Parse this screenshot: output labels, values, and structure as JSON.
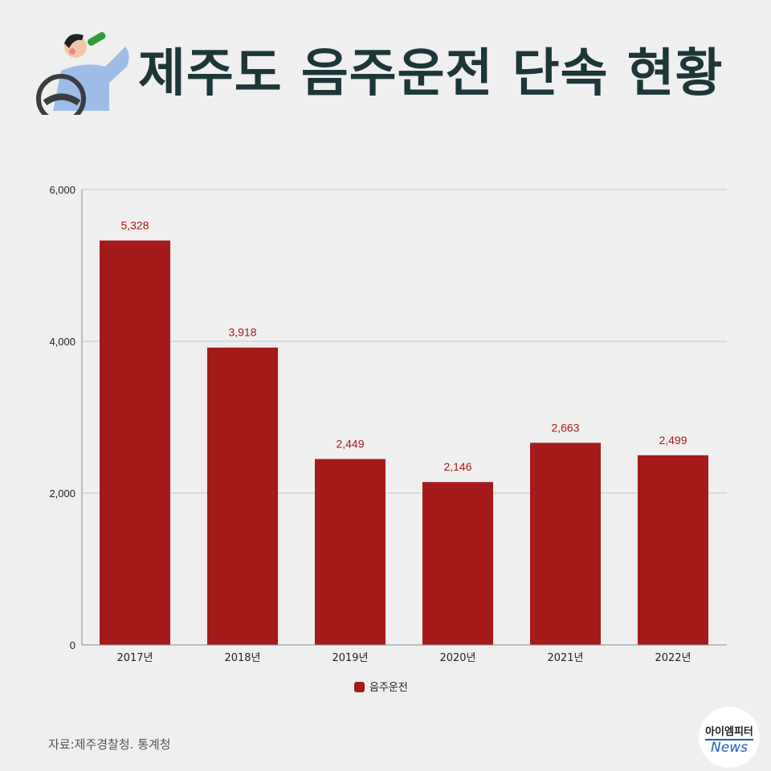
{
  "header": {
    "title": "제주도 음주운전 단속 현황",
    "illustration_icon": "man-drinking-while-driving-icon"
  },
  "colors": {
    "bar": "#a51a1a",
    "title": "#1d3638",
    "label": "#a51a1a",
    "background": "#efefef"
  },
  "chart_data": {
    "type": "bar",
    "categories": [
      "2017년",
      "2018년",
      "2019년",
      "2020년",
      "2021년",
      "2022년"
    ],
    "series": [
      {
        "name": "음주운전",
        "values": [
          5328,
          3918,
          2449,
          2146,
          2663,
          2499
        ]
      }
    ],
    "data_labels": [
      "5,328",
      "3,918",
      "2,449",
      "2,146",
      "2,663",
      "2,499"
    ],
    "yticks": [
      "0",
      "2,000",
      "4,000",
      "6,000"
    ],
    "ytick_values": [
      0,
      2000,
      4000,
      6000
    ],
    "ylim": [
      0,
      6000
    ],
    "grid": true,
    "legend": "bottom"
  },
  "footer": {
    "source": "자료:제주경찰청. 통계청",
    "logo_ko": "아이엠피터",
    "logo_en": "News"
  }
}
